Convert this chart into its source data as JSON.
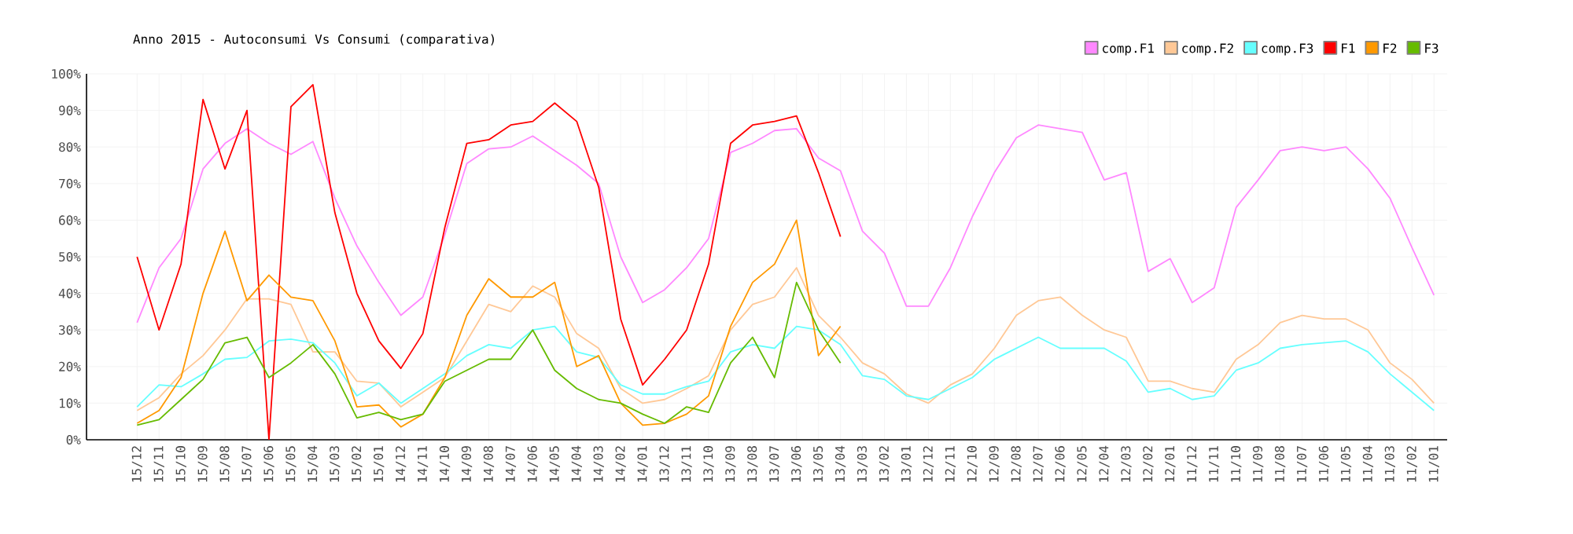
{
  "chart_data": {
    "type": "line",
    "title": "Anno 2015 - Autoconsumi Vs Consumi (comparativa)",
    "categories": [
      "15/12",
      "15/11",
      "15/10",
      "15/09",
      "15/08",
      "15/07",
      "15/06",
      "15/05",
      "15/04",
      "15/03",
      "15/02",
      "15/01",
      "14/12",
      "14/11",
      "14/10",
      "14/09",
      "14/08",
      "14/07",
      "14/06",
      "14/05",
      "14/04",
      "14/03",
      "14/02",
      "14/01",
      "13/12",
      "13/11",
      "13/10",
      "13/09",
      "13/08",
      "13/07",
      "13/06",
      "13/05",
      "13/04",
      "13/03",
      "13/02",
      "13/01",
      "12/12",
      "12/11",
      "12/10",
      "12/09",
      "12/08",
      "12/07",
      "12/06",
      "12/05",
      "12/04",
      "12/03",
      "12/02",
      "12/01",
      "11/12",
      "11/11",
      "11/10",
      "11/09",
      "11/08",
      "11/07",
      "11/06",
      "11/05",
      "11/04",
      "11/03",
      "11/02",
      "11/01"
    ],
    "series": [
      {
        "name": "comp.F1",
        "color": "#ff88ff",
        "values": [
          32,
          47,
          55,
          74,
          81,
          85,
          81,
          78,
          81.5,
          66,
          53,
          43,
          34,
          39,
          56,
          75.5,
          79.5,
          80,
          83,
          79,
          75,
          70,
          50,
          37.5,
          41,
          47,
          55,
          78.5,
          81,
          84.5,
          85,
          77,
          73.5,
          57,
          51,
          36.5,
          36.5,
          47,
          61,
          73,
          82.5,
          86,
          85,
          84,
          71,
          73,
          46,
          49.5,
          37.5,
          41.5,
          63.5,
          71,
          79,
          80,
          79,
          80,
          74,
          66,
          52.5,
          39.5
        ]
      },
      {
        "name": "comp.F2",
        "color": "#ffc896",
        "values": [
          8,
          11.5,
          18,
          23,
          30,
          38.5,
          38.5,
          37,
          24,
          24,
          16,
          15.5,
          9,
          13,
          17,
          27,
          37,
          35,
          42,
          39,
          29,
          25,
          14,
          10,
          11,
          14,
          17.5,
          30,
          37,
          39,
          47,
          34,
          28,
          21,
          18,
          12.5,
          10,
          15,
          18,
          25,
          34,
          38,
          39,
          34,
          30,
          28,
          16,
          16,
          14,
          13,
          22,
          26,
          32,
          34,
          33,
          33,
          30,
          21,
          16.5,
          10
        ]
      },
      {
        "name": "comp.F3",
        "color": "#66ffff",
        "values": [
          9,
          15,
          14.5,
          18,
          22,
          22.5,
          27,
          27.5,
          26.5,
          21,
          12,
          15.5,
          10,
          14,
          18,
          23,
          26,
          25,
          30,
          31,
          24,
          22.5,
          15,
          12.5,
          12.5,
          14.5,
          16,
          24,
          26,
          25,
          31,
          30,
          26,
          17.5,
          16.5,
          12,
          11,
          14,
          17,
          22,
          25,
          28,
          25,
          25,
          25,
          21.5,
          13,
          14,
          11,
          12,
          19,
          21,
          25,
          26,
          26.5,
          27,
          24,
          18,
          13,
          8
        ]
      },
      {
        "name": "F1",
        "color": "#ff0000",
        "values": [
          50,
          30,
          48,
          93,
          74,
          90,
          0,
          91,
          97,
          62,
          40,
          27,
          19.5,
          29,
          58,
          81,
          82,
          86,
          87,
          92,
          87,
          69,
          33,
          15,
          22,
          30,
          48,
          81,
          86,
          87,
          88.5,
          73,
          55.5,
          null,
          null,
          null,
          null,
          null,
          null,
          null,
          null,
          null,
          null,
          null,
          null,
          null,
          null,
          null,
          null,
          null,
          null,
          null,
          null,
          null,
          null,
          null,
          null,
          null,
          null,
          null
        ]
      },
      {
        "name": "F2",
        "color": "#ff9900",
        "values": [
          4.5,
          8,
          17,
          40,
          57,
          38,
          45,
          39,
          38,
          27,
          9,
          9.5,
          3.5,
          7,
          17,
          34,
          44,
          39,
          39,
          43,
          20,
          23,
          10,
          4,
          4.5,
          7,
          12,
          31,
          43,
          48,
          60,
          23,
          31,
          null,
          null,
          null,
          null,
          null,
          null,
          null,
          null,
          null,
          null,
          null,
          null,
          null,
          null,
          null,
          null,
          null,
          null,
          null,
          null,
          null,
          null,
          null,
          null,
          null,
          null,
          null
        ]
      },
      {
        "name": "F3",
        "color": "#66bb00",
        "values": [
          4,
          5.5,
          11,
          16.5,
          26.5,
          28,
          17,
          21,
          26,
          18,
          6,
          7.5,
          5.5,
          7,
          16,
          19,
          22,
          22,
          30,
          19,
          14,
          11,
          10,
          7,
          4.5,
          9,
          7.5,
          21,
          28,
          17,
          43,
          30,
          21,
          null,
          null,
          null,
          null,
          null,
          null,
          null,
          null,
          null,
          null,
          null,
          null,
          null,
          null,
          null,
          null,
          null,
          null,
          null,
          null,
          null,
          null,
          null,
          null,
          null,
          null,
          null
        ]
      }
    ],
    "ylim": [
      0,
      100
    ],
    "yticks": [
      {
        "value": 0,
        "label": "0%"
      },
      {
        "value": 10,
        "label": "10%"
      },
      {
        "value": 20,
        "label": "20%"
      },
      {
        "value": 30,
        "label": "30%"
      },
      {
        "value": 40,
        "label": "40%"
      },
      {
        "value": 50,
        "label": "50%"
      },
      {
        "value": 60,
        "label": "60%"
      },
      {
        "value": 70,
        "label": "70%"
      },
      {
        "value": 80,
        "label": "80%"
      },
      {
        "value": 90,
        "label": "90%"
      },
      {
        "value": 100,
        "label": "100%"
      }
    ],
    "grid": true,
    "legend": "top right",
    "marker": "none",
    "line_style": "solid"
  }
}
